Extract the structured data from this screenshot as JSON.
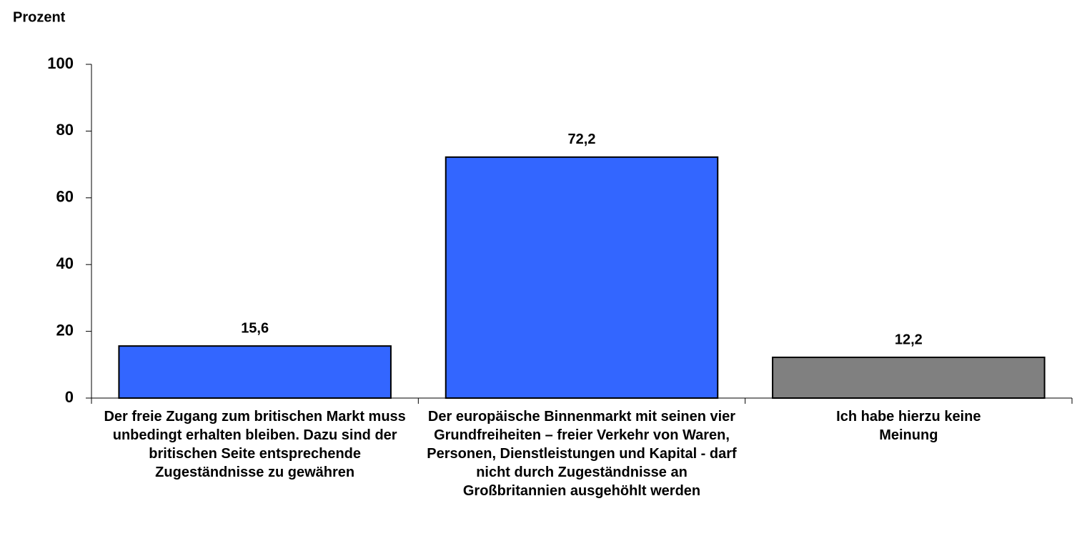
{
  "chart_data": {
    "type": "bar",
    "y_axis_label": "Prozent",
    "categories": [
      "Der freie Zugang zum britischen Markt muss unbedingt erhalten bleiben. Dazu sind der britischen Seite entsprechende Zugeständnisse zu gewähren",
      "Der europäische Binnenmarkt mit seinen vier Grundfreiheiten – freier Verkehr von Waren, Personen, Dienstleistungen und Kapital - darf nicht durch Zugeständnisse an Großbritannien ausgehöhlt werden",
      "Ich habe hierzu keine Meinung"
    ],
    "values": [
      15.6,
      72.2,
      12.2
    ],
    "value_labels": [
      "15,6",
      "72,2",
      "12,2"
    ],
    "colors": [
      "#3366ff",
      "#3366ff",
      "#808080"
    ],
    "ylim": [
      0,
      100
    ],
    "yticks": [
      0,
      20,
      40,
      60,
      80,
      100
    ]
  }
}
